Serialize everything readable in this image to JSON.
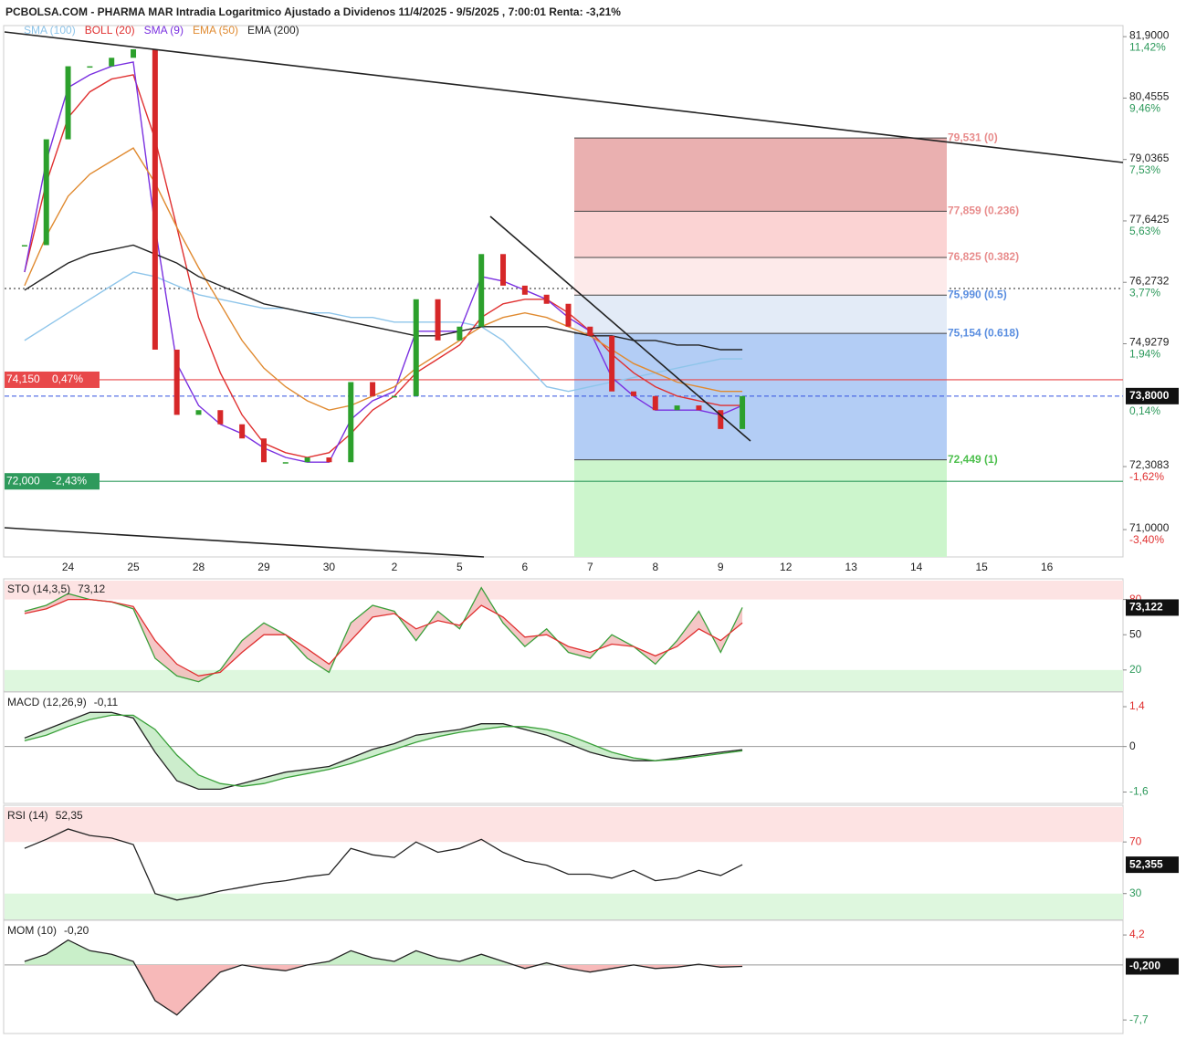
{
  "chart_data": [
    {
      "type": "candle",
      "title": "PCBOLSA.COM - PHARMA MAR Intradia Logaritmico Ajustado a Dividenos 11/4/2025 - 9/5/2025 , 7:00:01 Renta: -3,21%",
      "log": true,
      "categories": [
        null,
        null,
        "24",
        null,
        null,
        "25",
        null,
        null,
        "28",
        null,
        null,
        "29",
        null,
        null,
        "30",
        null,
        null,
        "2",
        null,
        null,
        "5",
        null,
        null,
        "6",
        null,
        null,
        "7",
        null,
        null,
        "8",
        null,
        null,
        "9",
        null,
        null,
        "12",
        null,
        null,
        "13",
        null,
        null,
        "14",
        null,
        null,
        "15",
        null,
        null,
        "16",
        null,
        null,
        null
      ],
      "close": [
        77.1,
        79.5,
        81.2,
        81.2,
        81.4,
        81.6,
        74.8,
        73.4,
        73.5,
        73.2,
        72.9,
        72.4,
        72.4,
        72.5,
        72.4,
        74.1,
        73.8,
        73.8,
        75.9,
        75.0,
        75.3,
        76.9,
        76.2,
        76.0,
        75.8,
        75.3,
        75.1,
        73.9,
        73.8,
        73.5,
        73.6,
        73.5,
        73.1,
        73.8,
        null,
        null,
        null,
        null,
        null,
        null,
        null,
        null,
        null,
        null,
        null,
        null,
        null,
        null,
        null,
        null,
        null
      ],
      "series": [
        {
          "name": "SMA (100)",
          "color": "#8ec5ea",
          "values": [
            75.0,
            75.3,
            75.6,
            75.9,
            76.2,
            76.5,
            76.4,
            76.2,
            76.0,
            75.9,
            75.8,
            75.7,
            75.7,
            75.6,
            75.6,
            75.5,
            75.5,
            75.4,
            75.4,
            75.4,
            75.4,
            75.3,
            75.0,
            74.5,
            74.0,
            73.9,
            74.0,
            74.1,
            74.2,
            74.3,
            74.4,
            74.5,
            74.6,
            74.6,
            null,
            null,
            null,
            null,
            null,
            null,
            null,
            null,
            null,
            null,
            null,
            null,
            null,
            null,
            null,
            null,
            null
          ]
        },
        {
          "name": "BOLL (20)",
          "color": "#e03030",
          "values": [
            76.5,
            78.5,
            80.0,
            80.6,
            80.9,
            81.0,
            79.5,
            77.5,
            75.5,
            74.3,
            73.4,
            72.8,
            72.6,
            72.5,
            72.6,
            73.0,
            73.5,
            73.8,
            74.3,
            74.6,
            74.9,
            75.5,
            75.8,
            75.9,
            75.9,
            75.6,
            75.2,
            74.7,
            74.3,
            74.0,
            73.8,
            73.7,
            73.6,
            73.6,
            null,
            null,
            null,
            null,
            null,
            null,
            null,
            null,
            null,
            null,
            null,
            null,
            null,
            null,
            null,
            null,
            null
          ]
        },
        {
          "name": "SMA (9)",
          "color": "#7a30e0",
          "values": [
            76.5,
            79.0,
            80.7,
            81.0,
            81.2,
            81.3,
            77.5,
            74.5,
            73.6,
            73.2,
            73.0,
            72.7,
            72.5,
            72.4,
            72.4,
            73.3,
            73.7,
            73.9,
            75.2,
            75.2,
            75.2,
            76.4,
            76.3,
            76.1,
            75.9,
            75.5,
            75.2,
            74.2,
            73.8,
            73.5,
            73.5,
            73.5,
            73.4,
            73.6,
            null,
            null,
            null,
            null,
            null,
            null,
            null,
            null,
            null,
            null,
            null,
            null,
            null,
            null,
            null,
            null,
            null
          ]
        },
        {
          "name": "EMA (50)",
          "color": "#e08a30",
          "values": [
            76.2,
            77.3,
            78.2,
            78.7,
            79.0,
            79.3,
            78.5,
            77.5,
            76.6,
            75.8,
            75.0,
            74.4,
            74.0,
            73.7,
            73.5,
            73.6,
            73.8,
            74.0,
            74.4,
            74.7,
            75.0,
            75.3,
            75.5,
            75.6,
            75.5,
            75.3,
            75.1,
            74.8,
            74.5,
            74.3,
            74.1,
            74.0,
            73.9,
            73.9,
            null,
            null,
            null,
            null,
            null,
            null,
            null,
            null,
            null,
            null,
            null,
            null,
            null,
            null,
            null,
            null,
            null
          ]
        },
        {
          "name": "EMA (200)",
          "color": "#222222",
          "values": [
            76.1,
            76.4,
            76.7,
            76.9,
            77.0,
            77.1,
            76.9,
            76.7,
            76.4,
            76.2,
            76.0,
            75.8,
            75.7,
            75.6,
            75.5,
            75.4,
            75.3,
            75.2,
            75.1,
            75.1,
            75.2,
            75.3,
            75.3,
            75.3,
            75.3,
            75.2,
            75.1,
            75.1,
            75.0,
            75.0,
            74.9,
            74.9,
            74.8,
            74.8,
            null,
            null,
            null,
            null,
            null,
            null,
            null,
            null,
            null,
            null,
            null,
            null,
            null,
            null,
            null,
            null,
            null
          ]
        }
      ],
      "ylim": [
        70.44,
        82.12
      ],
      "yticks": [
        {
          "value": 81.9,
          "label": "81,9000"
        },
        {
          "value": 80.4555,
          "label": "80,4555"
        },
        {
          "value": 79.0365,
          "label": "79,0365"
        },
        {
          "value": 77.6425,
          "label": "77,6425"
        },
        {
          "value": 76.2732,
          "label": "76,2732"
        },
        {
          "value": 74.9279,
          "label": "74,9279"
        },
        {
          "value": 72.3083,
          "label": "72,3083"
        },
        {
          "value": 71.0,
          "label": "71,0000"
        }
      ],
      "ytick_changes": [
        "11,42%",
        "9,46%",
        "7,53%",
        "5,63%",
        "3,77%",
        "1,94%",
        "-1,62%",
        "-3,40%"
      ],
      "last": {
        "value": 73.8,
        "label": "73,8000",
        "change": "0,14%"
      },
      "levels": [
        {
          "value": 74.15,
          "label": "74,150",
          "change": "0,47%",
          "color": "#e8484a"
        },
        {
          "value": 72.0,
          "label": "72,000",
          "change": "-2,43%",
          "color": "#2e9a5c"
        }
      ],
      "fibonacci": [
        {
          "value": 79.531,
          "label": "79,531 (0)"
        },
        {
          "value": 77.859,
          "label": "77,859 (0.236)"
        },
        {
          "value": 76.825,
          "label": "76,825 (0.382)"
        },
        {
          "value": 75.99,
          "label": "75,990 (0.5)"
        },
        {
          "value": 75.154,
          "label": "75,154 (0.618)"
        },
        {
          "value": 72.449,
          "label": "72,449 (1)"
        }
      ]
    },
    {
      "type": "line",
      "title": "STO (14,3,5)",
      "header_value": {
        "value": 73.12,
        "label": "73,12"
      },
      "zones": true,
      "series": [
        {
          "color": "#3aa03a",
          "values": [
            70,
            75,
            85,
            80,
            78,
            72,
            30,
            15,
            10,
            20,
            45,
            60,
            50,
            30,
            18,
            60,
            75,
            70,
            45,
            70,
            55,
            90,
            60,
            40,
            55,
            35,
            30,
            50,
            40,
            25,
            45,
            70,
            35,
            73.122,
            null,
            null,
            null,
            null,
            null,
            null,
            null,
            null,
            null,
            null,
            null,
            null,
            null,
            null,
            null,
            null,
            null
          ]
        },
        {
          "color": "#e03030",
          "values": [
            68,
            72,
            80,
            80,
            78,
            74,
            45,
            25,
            15,
            18,
            35,
            50,
            50,
            38,
            25,
            45,
            65,
            68,
            55,
            62,
            58,
            75,
            65,
            48,
            50,
            40,
            35,
            42,
            40,
            32,
            40,
            55,
            45,
            60,
            null,
            null,
            null,
            null,
            null,
            null,
            null,
            null,
            null,
            null,
            null,
            null,
            null,
            null,
            null,
            null,
            null
          ]
        }
      ],
      "ylim": [
        2,
        96
      ],
      "yticks": [
        80,
        50,
        20
      ],
      "last": {
        "value": 73.122,
        "label": "73,122"
      }
    },
    {
      "type": "line",
      "title": "MACD (12,26,9)",
      "header_value": {
        "value": -0.11,
        "label": "-0,11"
      },
      "series": [
        {
          "color": "#222222",
          "values": [
            0.3,
            0.6,
            0.9,
            1.2,
            1.2,
            1.0,
            -0.2,
            -1.2,
            -1.5,
            -1.5,
            -1.3,
            -1.1,
            -0.9,
            -0.8,
            -0.7,
            -0.4,
            -0.1,
            0.1,
            0.4,
            0.5,
            0.6,
            0.8,
            0.8,
            0.6,
            0.4,
            0.1,
            -0.2,
            -0.4,
            -0.5,
            -0.5,
            -0.4,
            -0.3,
            -0.2,
            -0.11,
            null,
            null,
            null,
            null,
            null,
            null,
            null,
            null,
            null,
            null,
            null,
            null,
            null,
            null,
            null,
            null,
            null
          ]
        },
        {
          "color": "#3aa03a",
          "values": [
            0.2,
            0.4,
            0.7,
            0.95,
            1.1,
            1.1,
            0.6,
            -0.3,
            -1.0,
            -1.3,
            -1.4,
            -1.3,
            -1.1,
            -0.95,
            -0.8,
            -0.6,
            -0.35,
            -0.1,
            0.15,
            0.35,
            0.5,
            0.6,
            0.7,
            0.7,
            0.6,
            0.4,
            0.1,
            -0.2,
            -0.4,
            -0.5,
            -0.45,
            -0.35,
            -0.25,
            -0.15,
            null,
            null,
            null,
            null,
            null,
            null,
            null,
            null,
            null,
            null,
            null,
            null,
            null,
            null,
            null,
            null,
            null
          ]
        }
      ],
      "ylim": [
        -2,
        1.85
      ],
      "yticks": [
        {
          "value": 1.4,
          "label": "1,4"
        },
        0,
        {
          "value": -1.6,
          "label": "-1,6"
        }
      ]
    },
    {
      "type": "line",
      "title": "RSI (14)",
      "header_value": {
        "value": 52.35,
        "label": "52,35"
      },
      "zones": true,
      "series": [
        {
          "color": "#222222",
          "values": [
            65,
            72,
            80,
            75,
            73,
            68,
            30,
            25,
            28,
            32,
            35,
            38,
            40,
            43,
            45,
            65,
            60,
            58,
            70,
            62,
            65,
            72,
            62,
            55,
            52,
            45,
            45,
            42,
            48,
            40,
            42,
            48,
            44,
            52.355,
            null,
            null,
            null,
            null,
            null,
            null,
            null,
            null,
            null,
            null,
            null,
            null,
            null,
            null,
            null,
            null,
            null
          ]
        }
      ],
      "ylim": [
        10,
        97
      ],
      "yticks": [
        70,
        30
      ],
      "last": {
        "value": 52.355,
        "label": "52,355"
      }
    },
    {
      "type": "area",
      "title": "MOM (10)",
      "header_value": {
        "value": -0.2,
        "label": "-0,20"
      },
      "series": [
        {
          "color": "#222222",
          "values": [
            0.5,
            1.5,
            3.5,
            2,
            1.5,
            0.5,
            -5,
            -7,
            -4,
            -1,
            0,
            -0.5,
            -0.8,
            0,
            0.5,
            2,
            1,
            0.5,
            2,
            1,
            0.5,
            1.5,
            0.5,
            -0.5,
            0.3,
            -0.5,
            -1,
            -0.5,
            0,
            -0.5,
            -0.3,
            0.1,
            -0.3,
            -0.2,
            null,
            null,
            null,
            null,
            null,
            null,
            null,
            null,
            null,
            null,
            null,
            null,
            null,
            null,
            null,
            null,
            null
          ]
        }
      ],
      "ylim": [
        -9.6,
        6
      ],
      "yticks": [
        {
          "value": 4.2,
          "label": "4,2"
        },
        {
          "value": -7.7,
          "label": "-7,7"
        }
      ],
      "last": {
        "value": -0.2,
        "label": "-0,200"
      }
    }
  ]
}
